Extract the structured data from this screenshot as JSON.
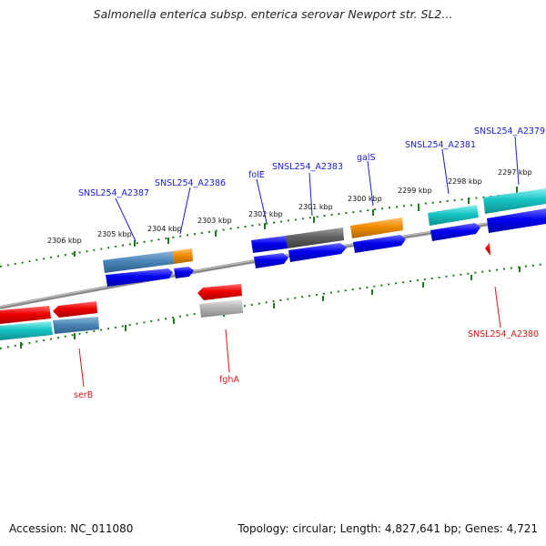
{
  "title": "Salmonella enterica subsp. enterica serovar Newport str. SL2...",
  "footer": {
    "accession": "Accession: NC_011080",
    "topology": "Topology: circular; Length: 4,827,641 bp; Genes: 4,721"
  },
  "colors": {
    "backbone": "#808080",
    "tick": "#1f7a1f",
    "forward_label": "#1a1acc",
    "reverse_label": "#cc1a1a",
    "blue": "#0000ee",
    "red": "#ee0000",
    "cyan": "#16c4c4",
    "steelblue": "#4a86b8",
    "orange": "#f08c00",
    "darkgray": "#606060",
    "lightgray": "#b4b4b4"
  },
  "scale_ticks": [
    "2297 kbp",
    "2298 kbp",
    "2299 kbp",
    "2300 kbp",
    "2301 kbp",
    "2302 kbp",
    "2303 kbp",
    "2304 kbp",
    "2305 kbp",
    "2306 kbp"
  ],
  "forward_labels": [
    "SNSL254_A2379",
    "SNSL254_A2381",
    "galS",
    "SNSL254_A2383",
    "folE",
    "SNSL254_A2386",
    "SNSL254_A2387"
  ],
  "reverse_labels": [
    "SNSL254_A2380",
    "fghA",
    "serB"
  ]
}
